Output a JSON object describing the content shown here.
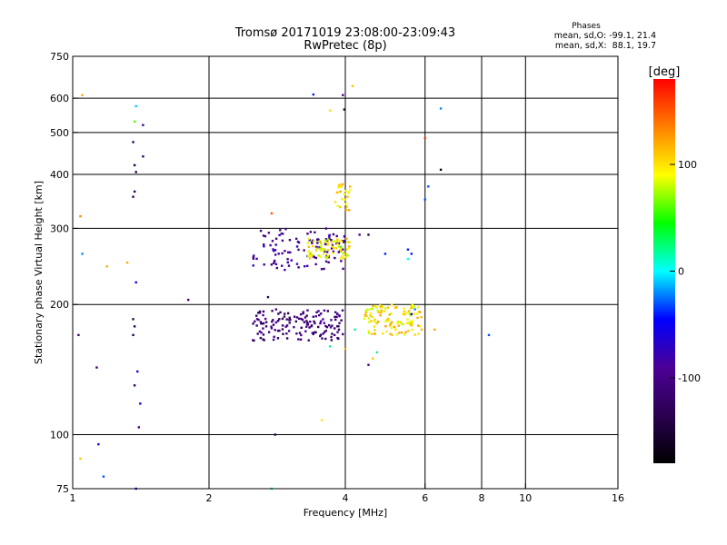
{
  "chart_data": {
    "type": "scatter",
    "title": "Tromsø 20171019 23:08:00-23:09:43",
    "subtitle": "RwPretec (8p)",
    "xlabel": "Frequency [MHz]",
    "ylabel": "Stationary phase Virtual Height [km]",
    "x_scale": "log",
    "y_scale": "log",
    "xlim": [
      1,
      16
    ],
    "ylim": [
      75,
      750
    ],
    "x_ticks": [
      1,
      2,
      4,
      6,
      8,
      10,
      16
    ],
    "y_ticks": [
      75,
      100,
      200,
      300,
      400,
      500,
      600,
      750
    ],
    "x_gridlines": [
      2,
      4,
      6,
      8,
      10
    ],
    "y_gridlines": [
      100,
      200,
      300,
      400,
      500,
      600
    ],
    "grid": true,
    "phases_box": {
      "title": "Phases",
      "line_o": "mean, sd,O: -99.1, 21.4",
      "line_x": "mean, sd,X:  88.1, 19.7"
    },
    "colorbar": {
      "label": "[deg]",
      "range": [
        -180,
        180
      ],
      "ticks": [
        100,
        0,
        -100
      ],
      "colormap": [
        "#000000",
        "#2a0050",
        "#4b0096",
        "#0000ff",
        "#00ffff",
        "#00ff00",
        "#ffff00",
        "#ff8000",
        "#ff0000"
      ]
    },
    "point_groups": [
      {
        "name": "upper-layer-blue",
        "freq_range": [
          2.5,
          4.0
        ],
        "height_range": [
          240,
          300
        ],
        "phase": -95,
        "count": 110
      },
      {
        "name": "upper-layer-yellow",
        "freq_range": [
          3.3,
          4.1
        ],
        "height_range": [
          255,
          285
        ],
        "phase": 95,
        "count": 70
      },
      {
        "name": "upper-column-yellow",
        "freq_range": [
          3.8,
          4.1
        ],
        "height_range": [
          330,
          380
        ],
        "phase": 100,
        "count": 25
      },
      {
        "name": "lower-layer-blue",
        "freq_range": [
          2.5,
          4.0
        ],
        "height_range": [
          165,
          195
        ],
        "phase": -110,
        "count": 150
      },
      {
        "name": "lower-layer-yellow",
        "freq_range": [
          4.4,
          5.9
        ],
        "height_range": [
          170,
          200
        ],
        "phase": 100,
        "count": 120
      }
    ],
    "points": [
      {
        "x": 1.05,
        "y": 610,
        "phase": 120
      },
      {
        "x": 1.04,
        "y": 320,
        "phase": 130
      },
      {
        "x": 1.05,
        "y": 262,
        "phase": -20
      },
      {
        "x": 1.03,
        "y": 170,
        "phase": -110
      },
      {
        "x": 1.04,
        "y": 88,
        "phase": 110
      },
      {
        "x": 1.13,
        "y": 143,
        "phase": -110
      },
      {
        "x": 1.14,
        "y": 95,
        "phase": -60
      },
      {
        "x": 1.17,
        "y": 80,
        "phase": -30
      },
      {
        "x": 1.19,
        "y": 245,
        "phase": 120
      },
      {
        "x": 1.32,
        "y": 250,
        "phase": 120
      },
      {
        "x": 1.37,
        "y": 530,
        "phase": 60
      },
      {
        "x": 1.38,
        "y": 575,
        "phase": -10
      },
      {
        "x": 1.36,
        "y": 475,
        "phase": -130
      },
      {
        "x": 1.37,
        "y": 420,
        "phase": -150
      },
      {
        "x": 1.38,
        "y": 405,
        "phase": -140
      },
      {
        "x": 1.37,
        "y": 365,
        "phase": -140
      },
      {
        "x": 1.36,
        "y": 355,
        "phase": -140
      },
      {
        "x": 1.43,
        "y": 520,
        "phase": -100
      },
      {
        "x": 1.43,
        "y": 440,
        "phase": -120
      },
      {
        "x": 1.38,
        "y": 225,
        "phase": -60
      },
      {
        "x": 1.36,
        "y": 185,
        "phase": -140
      },
      {
        "x": 1.37,
        "y": 178,
        "phase": -150
      },
      {
        "x": 1.36,
        "y": 170,
        "phase": -140
      },
      {
        "x": 1.39,
        "y": 140,
        "phase": -60
      },
      {
        "x": 1.37,
        "y": 130,
        "phase": -130
      },
      {
        "x": 1.41,
        "y": 118,
        "phase": -60
      },
      {
        "x": 1.4,
        "y": 104,
        "phase": -100
      },
      {
        "x": 1.38,
        "y": 75,
        "phase": -60
      },
      {
        "x": 1.8,
        "y": 205,
        "phase": -110
      },
      {
        "x": 2.7,
        "y": 208,
        "phase": -140
      },
      {
        "x": 2.75,
        "y": 325,
        "phase": 150
      },
      {
        "x": 2.8,
        "y": 100,
        "phase": -140
      },
      {
        "x": 2.75,
        "y": 75,
        "phase": 10
      },
      {
        "x": 3.4,
        "y": 612,
        "phase": -40
      },
      {
        "x": 3.7,
        "y": 562,
        "phase": 100
      },
      {
        "x": 3.95,
        "y": 610,
        "phase": -100
      },
      {
        "x": 3.98,
        "y": 565,
        "phase": -160
      },
      {
        "x": 4.15,
        "y": 640,
        "phase": 110
      },
      {
        "x": 3.55,
        "y": 108,
        "phase": 100
      },
      {
        "x": 4.0,
        "y": 158,
        "phase": 120
      },
      {
        "x": 4.2,
        "y": 175,
        "phase": 20
      },
      {
        "x": 4.5,
        "y": 145,
        "phase": -100
      },
      {
        "x": 4.7,
        "y": 155,
        "phase": 20
      },
      {
        "x": 4.6,
        "y": 150,
        "phase": 110
      },
      {
        "x": 3.7,
        "y": 160,
        "phase": 20
      },
      {
        "x": 4.3,
        "y": 290,
        "phase": -100
      },
      {
        "x": 4.5,
        "y": 290,
        "phase": -140
      },
      {
        "x": 4.9,
        "y": 262,
        "phase": -40
      },
      {
        "x": 5.5,
        "y": 268,
        "phase": -40
      },
      {
        "x": 5.6,
        "y": 262,
        "phase": -40
      },
      {
        "x": 5.5,
        "y": 255,
        "phase": 0
      },
      {
        "x": 5.7,
        "y": 195,
        "phase": -20
      },
      {
        "x": 5.6,
        "y": 190,
        "phase": -60
      },
      {
        "x": 6.0,
        "y": 485,
        "phase": 160
      },
      {
        "x": 6.0,
        "y": 350,
        "phase": -30
      },
      {
        "x": 6.1,
        "y": 375,
        "phase": -30
      },
      {
        "x": 6.5,
        "y": 568,
        "phase": -20
      },
      {
        "x": 6.5,
        "y": 410,
        "phase": -170
      },
      {
        "x": 6.3,
        "y": 175,
        "phase": 120
      },
      {
        "x": 8.3,
        "y": 170,
        "phase": -30
      }
    ]
  }
}
